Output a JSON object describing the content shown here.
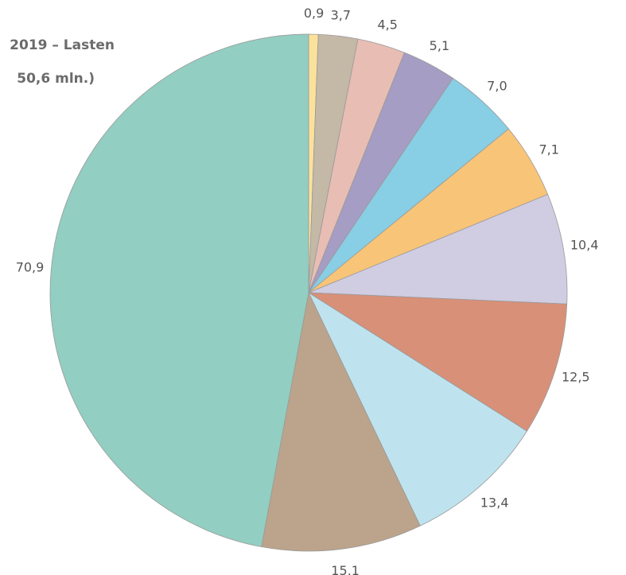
{
  "chart_data": {
    "type": "pie",
    "title_lines": [
      "2019 – Lasten",
      "50,6 mln.)"
    ],
    "slices": [
      {
        "label": "0,9",
        "value": 0.9,
        "color": "#FBE29A"
      },
      {
        "label": "3,7",
        "value": 3.7,
        "color": "#C4B8A6"
      },
      {
        "label": "4,5",
        "value": 4.5,
        "color": "#E8BDB3"
      },
      {
        "label": "5,1",
        "value": 5.1,
        "color": "#A59DC3"
      },
      {
        "label": "7,0",
        "value": 7.0,
        "color": "#88CEE4"
      },
      {
        "label": "7,1",
        "value": 7.1,
        "color": "#F8C478"
      },
      {
        "label": "10,4",
        "value": 10.4,
        "color": "#D0CCE2"
      },
      {
        "label": "12,5",
        "value": 12.5,
        "color": "#D89078"
      },
      {
        "label": "13,4",
        "value": 13.4,
        "color": "#BEE3EE"
      },
      {
        "label": "15,1",
        "value": 15.1,
        "color": "#BBA48B"
      },
      {
        "label": "70,9",
        "value": 70.9,
        "color": "#92CEC1"
      }
    ]
  }
}
